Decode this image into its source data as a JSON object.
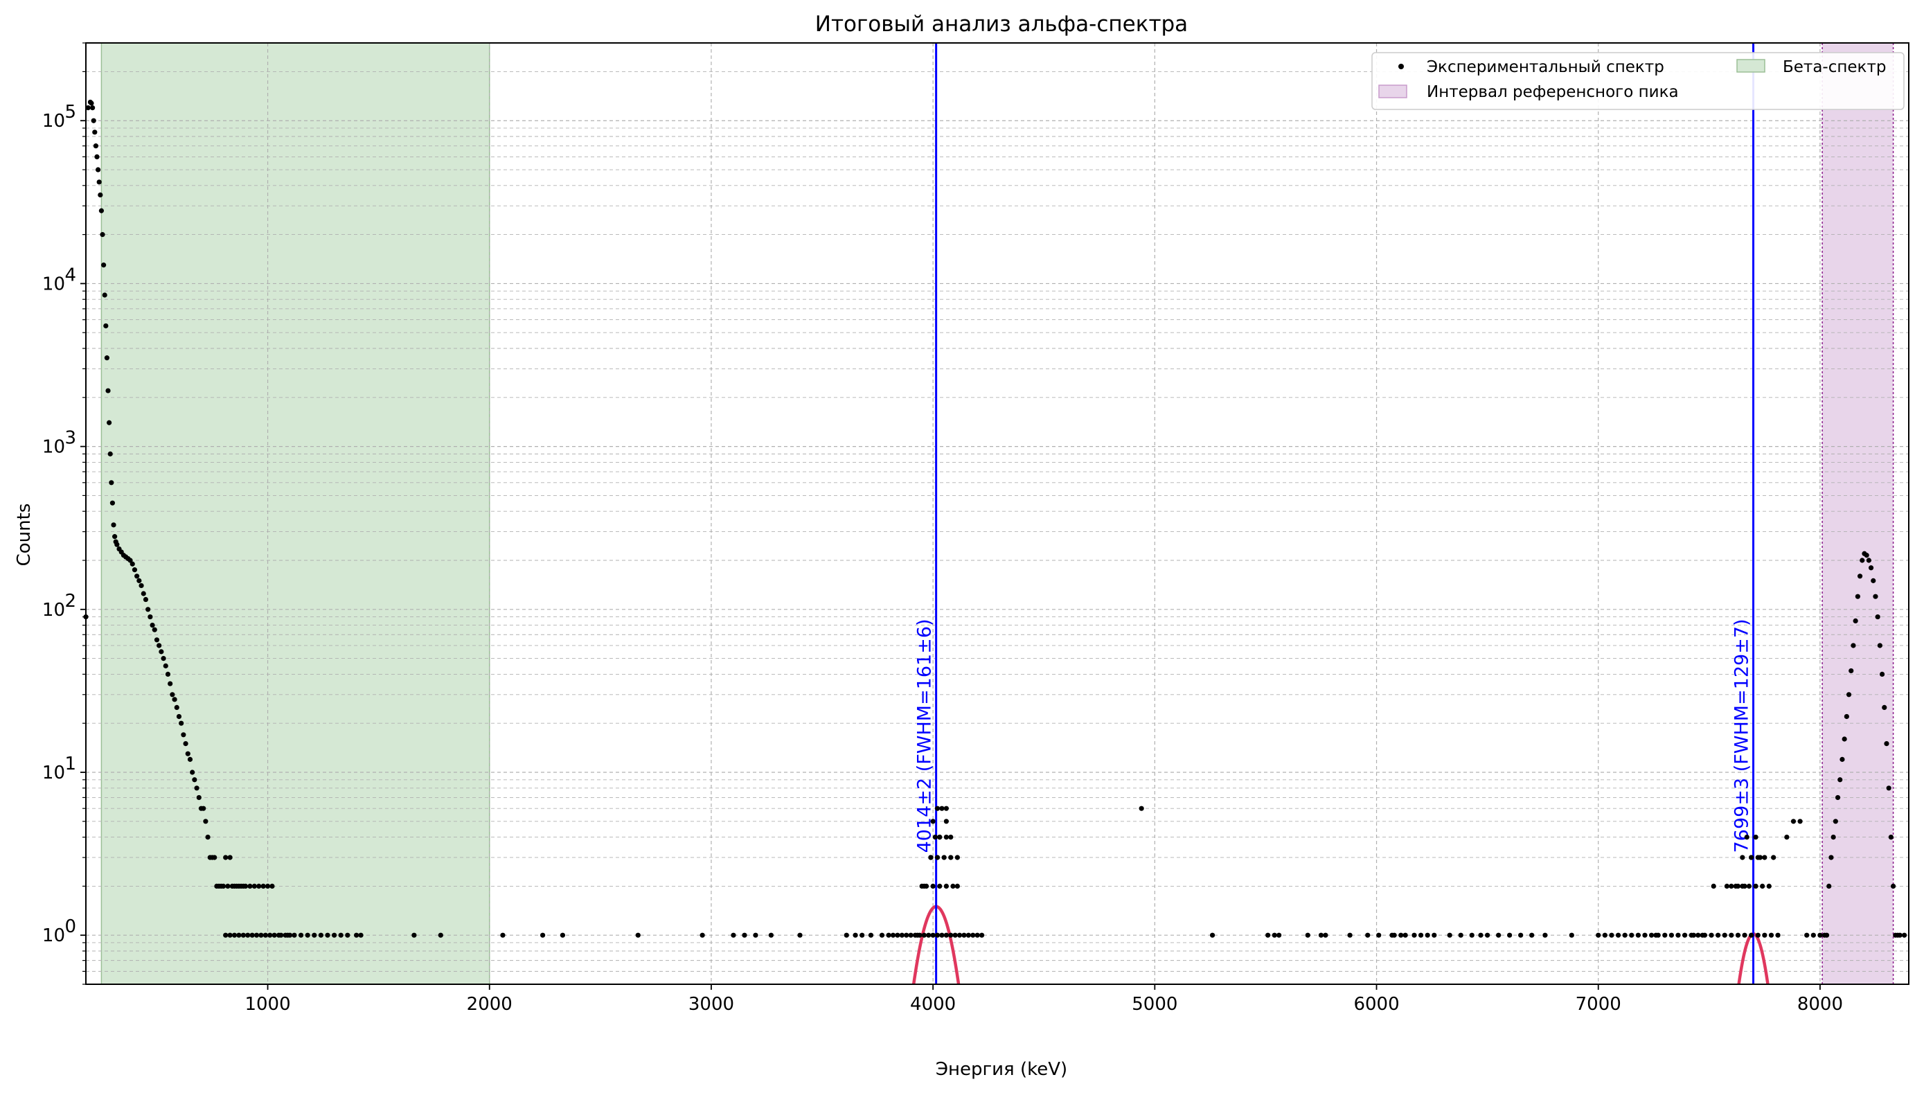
{
  "chart_data": {
    "type": "scatter",
    "title": "Итоговый анализ альфа-спектра",
    "xlabel": "Энергия (keV)",
    "ylabel": "Counts",
    "xlim": [
      180,
      8400
    ],
    "ylim": [
      0.5,
      300000
    ],
    "yscale": "log",
    "grid": true,
    "legend_position": "top-right",
    "x_ticks": [
      1000,
      2000,
      3000,
      4000,
      5000,
      6000,
      7000,
      8000
    ],
    "x_tick_labels": [
      "1000",
      "2000",
      "3000",
      "4000",
      "5000",
      "6000",
      "7000",
      "8000"
    ],
    "y_ticks": [
      1,
      10,
      100,
      1000,
      10000,
      100000
    ],
    "y_tick_labels": [
      {
        "base": "10",
        "exp": "0"
      },
      {
        "base": "10",
        "exp": "1"
      },
      {
        "base": "10",
        "exp": "2"
      },
      {
        "base": "10",
        "exp": "3"
      },
      {
        "base": "10",
        "exp": "4"
      },
      {
        "base": "10",
        "exp": "5"
      }
    ],
    "shaded_regions": [
      {
        "name": "Бета-спектр",
        "x_range": [
          250,
          2000
        ],
        "color": "#d5e8d4",
        "edge_color": "#9bbf96"
      },
      {
        "name": "Интервал референсного пика",
        "x_range": [
          8010,
          8330
        ],
        "color": "#e8d5ea",
        "edge_color": "#8b1a8b"
      }
    ],
    "peak_markers": [
      {
        "energy": 4014,
        "label": "4014±2 (FWHM=161±6)",
        "color": "#0000ff"
      },
      {
        "energy": 7699,
        "label": "7699±3 (FWHM=129±7)",
        "color": "#0000ff"
      }
    ],
    "fit_curves": [
      {
        "center": 4014,
        "fwhm": 161,
        "amplitude": 1.5,
        "x_range": [
          3900,
          4125
        ],
        "color": "#e0375e"
      },
      {
        "center": 7699,
        "fwhm": 129,
        "amplitude": 1.02,
        "x_range": [
          7620,
          7775
        ],
        "color": "#e0375e"
      }
    ],
    "series": [
      {
        "name": "Экспериментальный спектр",
        "marker": "point",
        "color": "#000000",
        "x": [
          180,
          190,
          200,
          205,
          210,
          215,
          220,
          225,
          230,
          235,
          240,
          245,
          250,
          255,
          260,
          265,
          270,
          275,
          280,
          285,
          290,
          295,
          300,
          305,
          310,
          315,
          320,
          330,
          340,
          350,
          360,
          370,
          380,
          390,
          400,
          410,
          420,
          430,
          440,
          450,
          460,
          470,
          480,
          490,
          500,
          510,
          520,
          530,
          540,
          550,
          560,
          570,
          580,
          590,
          600,
          610,
          620,
          630,
          640,
          650,
          660,
          670,
          680,
          690,
          700,
          710,
          720,
          730,
          740,
          750,
          760,
          770,
          780,
          790,
          800,
          810,
          820,
          830,
          840,
          850,
          860,
          870,
          880,
          890,
          900,
          920,
          940,
          960,
          980,
          1000,
          1020,
          1050,
          1080,
          1100,
          810,
          830,
          850,
          870,
          890,
          910,
          930,
          950,
          970,
          990,
          1010,
          1030,
          1060,
          1090,
          1120,
          1150,
          1180,
          1210,
          1240,
          1270,
          1300,
          1330,
          1360,
          1400,
          1420,
          1660,
          1780,
          2060,
          2240,
          2330,
          2670,
          2960,
          3100,
          3150,
          3200,
          3270,
          3400,
          3610,
          3650,
          3680,
          3720,
          3770,
          3800,
          3820,
          3840,
          3860,
          3880,
          3900,
          3920,
          3940,
          3960,
          3980,
          4000,
          4020,
          4040,
          4060,
          4080,
          4100,
          4120,
          4140,
          4160,
          4180,
          4200,
          4220,
          3930,
          3950,
          3970,
          4000,
          4030,
          4060,
          4090,
          4110,
          3960,
          3990,
          4020,
          4050,
          4080,
          4110,
          3990,
          4010,
          4030,
          4060,
          4080,
          4030,
          4060,
          4000,
          4020,
          4040,
          4060,
          4940,
          5260,
          5510,
          5540,
          5560,
          5690,
          5750,
          5770,
          5880,
          5960,
          6010,
          6070,
          6080,
          6110,
          6130,
          6170,
          6200,
          6230,
          6260,
          6330,
          6380,
          6430,
          6470,
          6500,
          6550,
          6600,
          6650,
          6700,
          6760,
          6880,
          7000,
          7030,
          7060,
          7090,
          7120,
          7150,
          7180,
          7210,
          7240,
          7270,
          7300,
          7330,
          7360,
          7390,
          7420,
          7450,
          7480,
          7510,
          7540,
          7570,
          7600,
          7630,
          7660,
          7690,
          7720,
          7750,
          7780,
          7810,
          7260,
          7430,
          7470,
          7520,
          7580,
          7620,
          7650,
          7680,
          7710,
          7740,
          7770,
          7600,
          7630,
          7660,
          7690,
          7720,
          7750,
          7790,
          7650,
          7690,
          7730,
          7670,
          7710,
          7850,
          7880,
          7910,
          7940,
          7970,
          8000,
          8020,
          8030,
          8040,
          8050,
          8060,
          8070,
          8080,
          8090,
          8100,
          8110,
          8120,
          8130,
          8140,
          8150,
          8160,
          8170,
          8180,
          8190,
          8200,
          8210,
          8220,
          8230,
          8240,
          8250,
          8260,
          8270,
          8280,
          8290,
          8300,
          8310,
          8320,
          8330,
          8340,
          8350,
          8360,
          8380
        ],
        "y": [
          90,
          120000,
          130000,
          128000,
          120000,
          100000,
          85000,
          70000,
          60000,
          50000,
          42000,
          35000,
          28000,
          20000,
          13000,
          8500,
          5500,
          3500,
          2200,
          1400,
          900,
          600,
          450,
          330,
          280,
          260,
          250,
          235,
          225,
          215,
          210,
          205,
          200,
          190,
          175,
          160,
          150,
          140,
          125,
          115,
          100,
          90,
          80,
          75,
          65,
          60,
          55,
          50,
          45,
          40,
          35,
          30,
          28,
          25,
          22,
          20,
          17,
          15,
          13,
          12,
          10,
          9,
          8,
          7,
          6,
          6,
          5,
          4,
          3,
          3,
          3,
          2,
          2,
          2,
          2,
          3,
          2,
          3,
          2,
          2,
          2,
          2,
          2,
          2,
          2,
          2,
          2,
          2,
          2,
          2,
          2,
          1,
          1,
          1,
          1,
          1,
          1,
          1,
          1,
          1,
          1,
          1,
          1,
          1,
          1,
          1,
          1,
          1,
          1,
          1,
          1,
          1,
          1,
          1,
          1,
          1,
          1,
          1,
          1,
          1,
          1,
          1,
          1,
          1,
          1,
          1,
          1,
          1,
          1,
          1,
          1,
          1,
          1,
          1,
          1,
          1,
          1,
          1,
          1,
          1,
          1,
          1,
          1,
          1,
          1,
          1,
          1,
          1,
          1,
          1,
          1,
          1,
          1,
          1,
          1,
          1,
          1,
          1,
          1,
          2,
          2,
          2,
          2,
          2,
          2,
          2,
          2,
          3,
          3,
          3,
          3,
          3,
          3,
          4,
          4,
          4,
          4,
          4,
          5,
          5,
          6,
          6,
          6,
          6,
          1,
          1,
          1,
          1,
          1,
          1,
          1,
          1,
          1,
          1,
          1,
          1,
          1,
          1,
          1,
          1,
          1,
          1,
          1,
          1,
          1,
          1,
          1,
          1,
          1,
          1,
          1,
          1,
          1,
          1,
          1,
          1,
          1,
          1,
          1,
          1,
          1,
          1,
          1,
          1,
          1,
          1,
          1,
          1,
          1,
          1,
          1,
          1,
          1,
          1,
          1,
          1,
          1,
          1,
          1,
          1,
          1,
          1,
          1,
          1,
          2,
          2,
          2,
          2,
          2,
          2,
          2,
          2,
          2,
          2,
          2,
          3,
          3,
          3,
          3,
          3,
          3,
          3,
          4,
          4,
          4,
          5,
          5,
          1,
          1,
          1,
          1,
          1,
          2,
          3,
          4,
          5,
          7,
          9,
          12,
          16,
          22,
          30,
          42,
          60,
          85,
          120,
          160,
          200,
          220,
          215,
          200,
          180,
          150,
          120,
          90,
          60,
          40,
          25,
          15,
          8,
          4,
          2,
          1,
          1,
          1,
          1
        ]
      }
    ]
  },
  "legend": {
    "entries": [
      {
        "label": "Экспериментальный спектр",
        "kind": "marker"
      },
      {
        "label": "Бета-спектр",
        "kind": "patch-green"
      },
      {
        "label": "Интервал референсного пика",
        "kind": "patch-purple"
      }
    ]
  },
  "colors": {
    "axes_edge": "#000000",
    "grid": "#b0b0b0",
    "marker": "#000000",
    "peak_line": "#0000ff",
    "fit_curve": "#e0375e"
  }
}
